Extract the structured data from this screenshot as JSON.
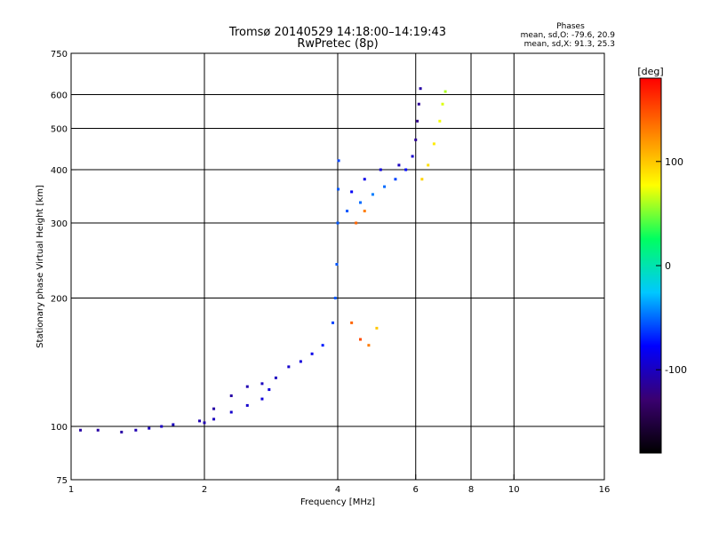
{
  "chart_data": {
    "type": "scatter",
    "title": "Tromsø 20140529 14:18:00–14:19:43",
    "subtitle": "RwPretec (8p)",
    "legend": {
      "title": "Phases",
      "line1": "mean, sd,O: -79.6, 20.9",
      "line2": "mean, sd,X:  91.3, 25.3"
    },
    "xlabel": "Frequency [MHz]",
    "ylabel": "Stationary phase Virtual Height [km]",
    "x_scale": "log",
    "y_scale": "log",
    "xlim": [
      1,
      16
    ],
    "ylim": [
      75,
      750
    ],
    "x_ticks": [
      1,
      2,
      4,
      6,
      8,
      10,
      16
    ],
    "x_tick_labels": [
      "1",
      "2",
      "4",
      "6",
      "8",
      "10",
      "16"
    ],
    "y_ticks": [
      75,
      100,
      200,
      300,
      400,
      500,
      600,
      750
    ],
    "y_tick_labels": [
      "75",
      "100",
      "200",
      "300",
      "400",
      "500",
      "600",
      "750"
    ],
    "x_gridlines": [
      2,
      4,
      6,
      8,
      10
    ],
    "y_gridlines": [
      100,
      200,
      300,
      400,
      500,
      600
    ],
    "grid": true,
    "colorbar": {
      "label": "[deg]",
      "range": [
        -180,
        180
      ],
      "ticks": [
        100,
        0,
        -100
      ],
      "tick_labels": [
        "100",
        "0",
        "-100"
      ],
      "colors": [
        "#000000",
        "#3a0070",
        "#0000ff",
        "#00c8ff",
        "#00ff60",
        "#ffff00",
        "#ff8000",
        "#ff0000"
      ]
    },
    "series": [
      {
        "values": [
          [
            1.05,
            98,
            -110
          ],
          [
            1.15,
            98,
            -110
          ],
          [
            1.3,
            97,
            -110
          ],
          [
            1.4,
            98,
            -105
          ],
          [
            1.5,
            99,
            -100
          ],
          [
            1.6,
            100,
            -100
          ],
          [
            1.7,
            101,
            -100
          ],
          [
            1.95,
            103,
            -105
          ],
          [
            2.0,
            102,
            -105
          ],
          [
            2.1,
            104,
            -100
          ],
          [
            2.3,
            108,
            -95
          ],
          [
            2.5,
            112,
            -95
          ],
          [
            2.7,
            116,
            -90
          ],
          [
            2.8,
            122,
            -90
          ],
          [
            2.1,
            110,
            -110
          ],
          [
            2.3,
            118,
            -110
          ],
          [
            2.5,
            124,
            -105
          ],
          [
            2.7,
            126,
            -100
          ],
          [
            2.9,
            130,
            -100
          ],
          [
            3.1,
            138,
            -95
          ],
          [
            3.3,
            142,
            -90
          ],
          [
            3.5,
            148,
            -85
          ],
          [
            3.7,
            155,
            -70
          ],
          [
            3.9,
            175,
            -60
          ],
          [
            3.95,
            200,
            -55
          ],
          [
            3.98,
            240,
            -55
          ],
          [
            4.0,
            300,
            -55
          ],
          [
            4.01,
            360,
            -55
          ],
          [
            4.02,
            420,
            -60
          ],
          [
            4.2,
            320,
            -55
          ],
          [
            4.5,
            335,
            -50
          ],
          [
            4.8,
            350,
            -45
          ],
          [
            5.1,
            365,
            -50
          ],
          [
            5.4,
            380,
            -60
          ],
          [
            5.7,
            400,
            -75
          ],
          [
            5.9,
            430,
            -95
          ],
          [
            6.0,
            470,
            -115
          ],
          [
            6.05,
            520,
            -120
          ],
          [
            6.1,
            570,
            -115
          ],
          [
            6.15,
            620,
            -110
          ],
          [
            4.3,
            355,
            -80
          ],
          [
            4.6,
            380,
            -85
          ],
          [
            5.0,
            400,
            -90
          ],
          [
            5.5,
            410,
            -100
          ]
        ]
      },
      {
        "values": [
          [
            6.2,
            380,
            95
          ],
          [
            6.4,
            410,
            90
          ],
          [
            6.6,
            460,
            85
          ],
          [
            6.8,
            520,
            75
          ],
          [
            6.9,
            570,
            70
          ],
          [
            7.0,
            610,
            60
          ],
          [
            4.3,
            175,
            140
          ],
          [
            4.5,
            160,
            150
          ],
          [
            4.7,
            155,
            130
          ],
          [
            4.9,
            170,
            100
          ],
          [
            4.4,
            300,
            140
          ],
          [
            4.6,
            320,
            130
          ]
        ]
      }
    ]
  }
}
